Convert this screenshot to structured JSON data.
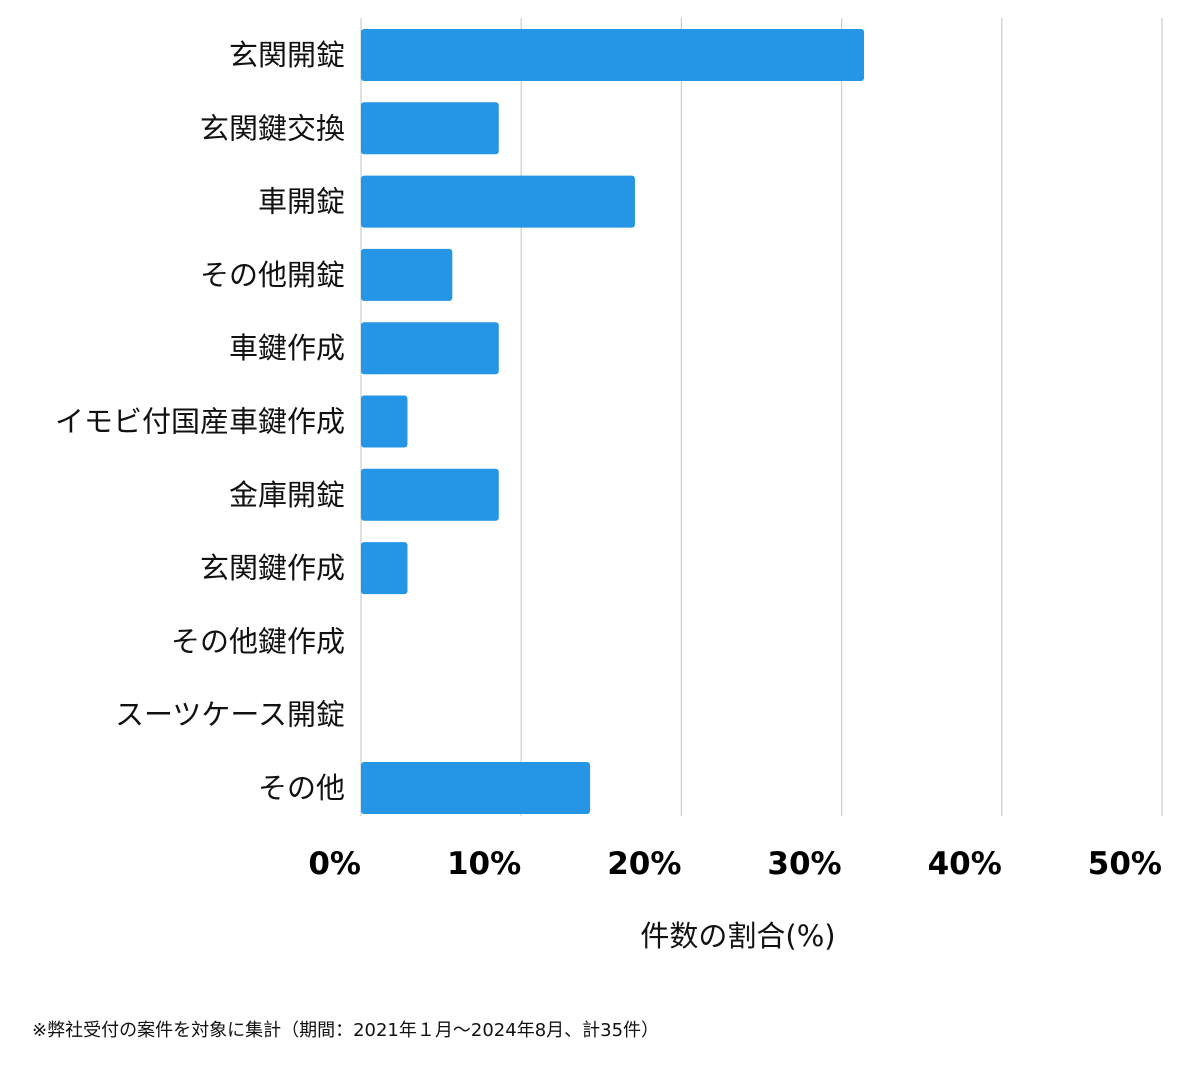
{
  "chart_data": {
    "type": "bar",
    "orientation": "horizontal",
    "categories": [
      "玄関開錠",
      "玄関鍵交換",
      "車開錠",
      "その他開錠",
      "車鍵作成",
      "イモビ付国産車鍵作成",
      "金庫開錠",
      "玄関鍵作成",
      "その他鍵作成",
      "スーツケース開錠",
      "その他"
    ],
    "values": [
      31.4,
      8.6,
      17.1,
      5.7,
      8.6,
      2.9,
      8.6,
      2.9,
      0,
      0,
      14.3
    ],
    "xlim": [
      0,
      50
    ],
    "ticks": [
      0,
      10,
      20,
      30,
      40,
      50
    ],
    "tick_labels": [
      "0%",
      "10%",
      "20%",
      "30%",
      "40%",
      "50%"
    ],
    "xlabel": "件数の割合(%)",
    "ylabel": "",
    "grid": true,
    "bar_color": "#2595e6",
    "grid_color": "#cccccc"
  },
  "footnote": "※弊社受付の案件を対象に集計（期間：2021年１月〜2024年8月、計35件）"
}
